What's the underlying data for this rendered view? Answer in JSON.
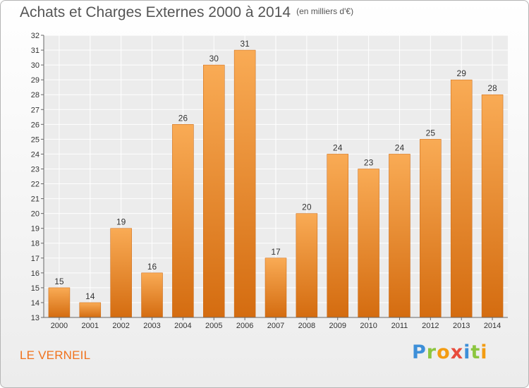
{
  "title": "Achats et Charges Externes 2000 à 2014",
  "subtitle": "(en milliers d'€)",
  "commune": "LE VERNEIL",
  "brand": [
    "P",
    "r",
    "o",
    "x",
    "i",
    "t",
    "i"
  ],
  "colors": {
    "bar_light": "#f9ab55",
    "bar_dark": "#d46c10",
    "title": "#555555",
    "commune": "#f0721d"
  },
  "chart_data": {
    "type": "bar",
    "categories": [
      "2000",
      "2001",
      "2002",
      "2003",
      "2004",
      "2005",
      "2006",
      "2007",
      "2008",
      "2009",
      "2010",
      "2011",
      "2012",
      "2013",
      "2014"
    ],
    "values": [
      15,
      14,
      19,
      16,
      26,
      30,
      31,
      17,
      20,
      24,
      23,
      24,
      25,
      29,
      28
    ],
    "title": "Achats et Charges Externes 2000 à 2014",
    "subtitle": "(en milliers d'€)",
    "ylim": [
      13,
      32
    ],
    "yticks": [
      13,
      14,
      15,
      16,
      17,
      18,
      19,
      20,
      21,
      22,
      23,
      24,
      25,
      26,
      27,
      28,
      29,
      30,
      31,
      32
    ],
    "grid": true,
    "data_labels": true
  }
}
